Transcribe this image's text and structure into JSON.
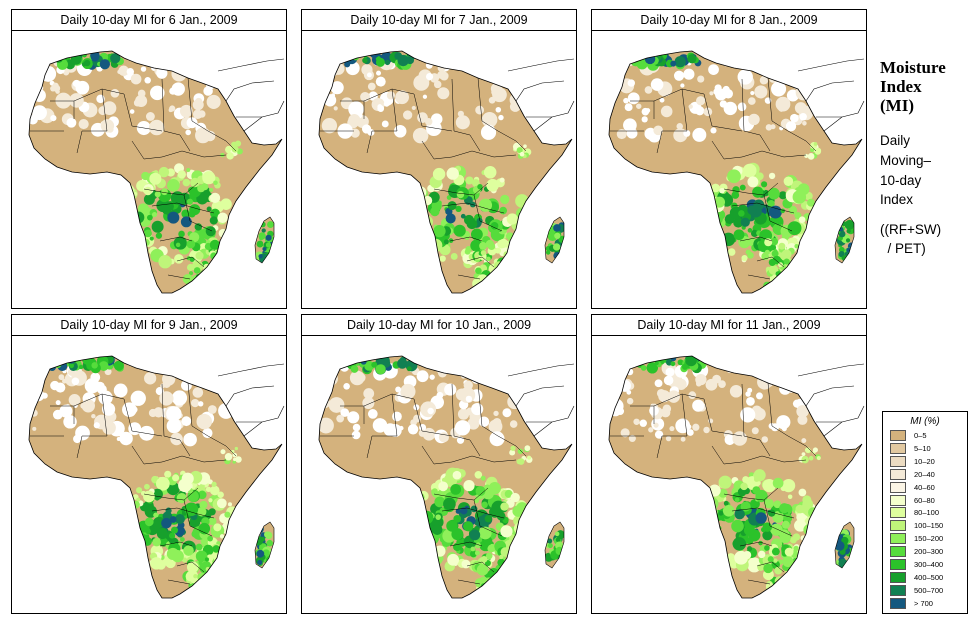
{
  "panels": [
    {
      "title": "Daily 10-day MI for  6 Jan., 2009",
      "wet": 0.55
    },
    {
      "title": "Daily 10-day MI for  7 Jan., 2009",
      "wet": 0.55
    },
    {
      "title": "Daily 10-day MI for  8 Jan., 2009",
      "wet": 0.6
    },
    {
      "title": "Daily 10-day MI for  9 Jan., 2009",
      "wet": 0.7
    },
    {
      "title": "Daily 10-day MI for  10 Jan., 2009",
      "wet": 0.75
    },
    {
      "title": "Daily 10-day MI for  11 Jan., 2009",
      "wet": 0.7
    }
  ],
  "sidebar": {
    "title_lines": [
      "Moisture",
      "Index",
      "(MI)"
    ],
    "desc_lines": [
      "Daily",
      "Moving–",
      "10-day",
      "Index"
    ],
    "formula_lines": [
      "((RF+SW)",
      "  / PET)"
    ]
  },
  "legend": {
    "title": "MI (%)",
    "items": [
      {
        "label": "0–5",
        "color": "#d4b27d"
      },
      {
        "label": "5–10",
        "color": "#e2c9a1"
      },
      {
        "label": "10–20",
        "color": "#ecdcc2"
      },
      {
        "label": "20–40",
        "color": "#f4ead8"
      },
      {
        "label": "40–60",
        "color": "#fbf5e6"
      },
      {
        "label": "60–80",
        "color": "#f4ffcc"
      },
      {
        "label": "80–100",
        "color": "#deff9e"
      },
      {
        "label": "100–150",
        "color": "#bff57a"
      },
      {
        "label": "150–200",
        "color": "#8ff05a"
      },
      {
        "label": "200–300",
        "color": "#56dc3c"
      },
      {
        "label": "300–400",
        "color": "#2bc22a"
      },
      {
        "label": "400–500",
        "color": "#17a02c"
      },
      {
        "label": "500–700",
        "color": "#118052"
      },
      {
        "label": "> 700",
        "color": "#14587f"
      }
    ]
  }
}
